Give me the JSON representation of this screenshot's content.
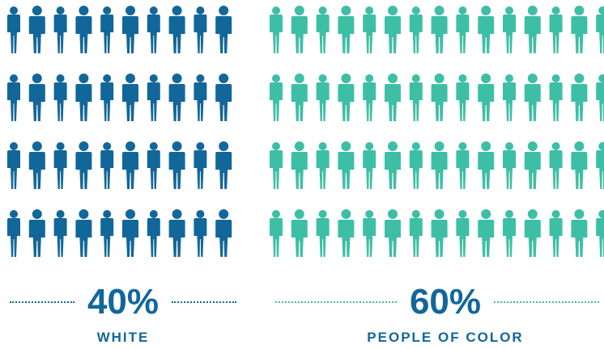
{
  "chart_data": {
    "type": "pictograph",
    "total_figures": 100,
    "series": [
      {
        "name": "WHITE",
        "percent_label": "40%",
        "value": 40,
        "color": "#12679a"
      },
      {
        "name": "PEOPLE OF COLOR",
        "percent_label": "60%",
        "value": 60,
        "color": "#3dbfa5"
      }
    ],
    "rows": 4,
    "icon": "person-icon"
  }
}
